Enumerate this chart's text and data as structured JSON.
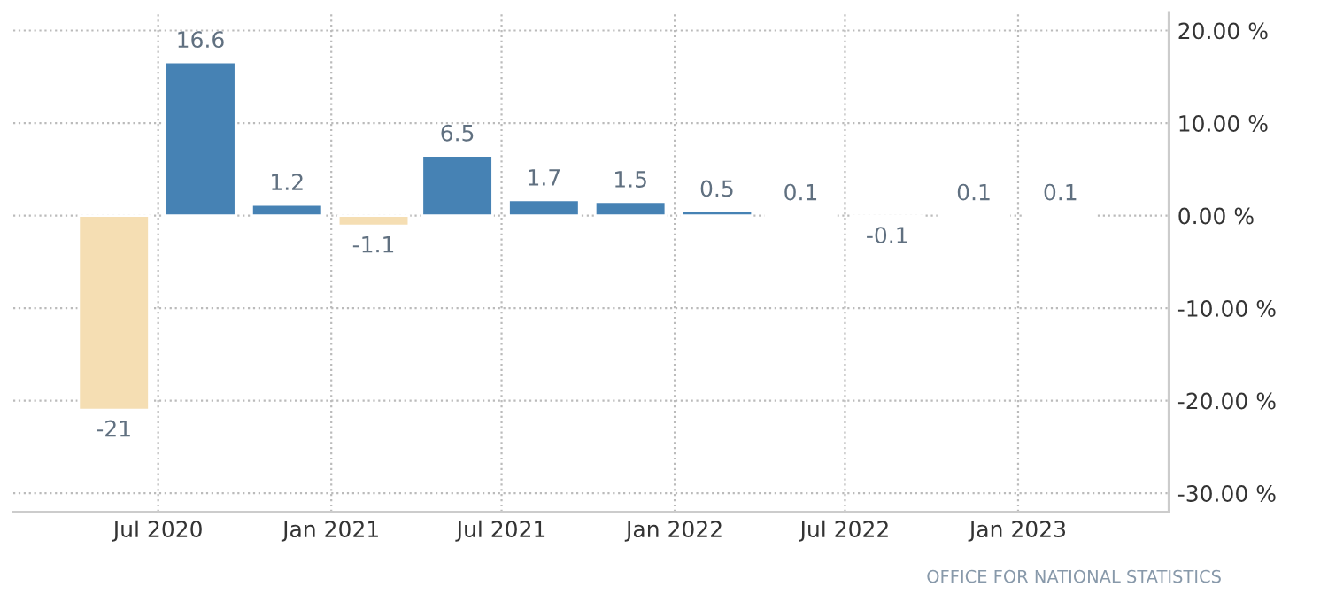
{
  "chart_data": {
    "type": "bar",
    "x": [
      "2020-05-15",
      "2020-08-15",
      "2020-11-15",
      "2021-02-15",
      "2021-05-15",
      "2021-08-15",
      "2021-11-15",
      "2022-02-15",
      "2022-05-15",
      "2022-08-15",
      "2022-11-15",
      "2023-02-15"
    ],
    "values": [
      -21,
      16.6,
      1.2,
      -1.1,
      6.5,
      1.7,
      1.5,
      0.5,
      0.1,
      -0.1,
      0.1,
      0.1
    ],
    "colors": [
      "#f5deb3",
      "#4682b4",
      "#4682b4",
      "#f5deb3",
      "#4682b4",
      "#4682b4",
      "#4682b4",
      "#4682b4",
      "#4682b4",
      "#f5deb3",
      "#4682b4",
      "#4682b4"
    ],
    "data_labels": true,
    "xlim": [
      "2020-01-29",
      "2023-06-10"
    ],
    "xticks": [
      {
        "value": "2020-07-01",
        "label": "Jul 2020"
      },
      {
        "value": "2021-01-01",
        "label": "Jan 2021"
      },
      {
        "value": "2021-07-01",
        "label": "Jul 2021"
      },
      {
        "value": "2022-01-01",
        "label": "Jan 2022"
      },
      {
        "value": "2022-07-01",
        "label": "Jul 2022"
      },
      {
        "value": "2023-01-01",
        "label": "Jan 2023"
      }
    ],
    "ylim": [
      -32,
      22
    ],
    "yticks": [
      {
        "value": 20,
        "label": "20.00 %"
      },
      {
        "value": 10,
        "label": "10.00 %"
      },
      {
        "value": 0,
        "label": "0.00 %"
      },
      {
        "value": -10,
        "label": "-10.00 %"
      },
      {
        "value": -20,
        "label": "-20.00 %"
      },
      {
        "value": -30,
        "label": "-30.00 %"
      }
    ],
    "grid": true,
    "annotations": [
      "OFFICE FOR NATIONAL STATISTICS"
    ]
  }
}
